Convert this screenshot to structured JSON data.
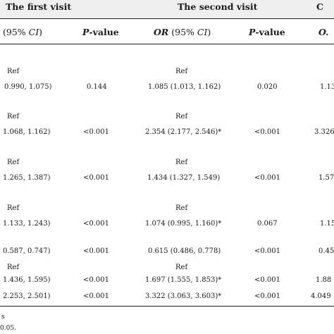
{
  "header": {
    "group1": "The first visit",
    "group2": "The second visit",
    "group3": "C"
  },
  "columns": {
    "c1": {
      "em": "(95% ",
      "ci": "CI",
      "close": ")"
    },
    "c2": {
      "p": "P",
      "rest": "-value"
    },
    "c3": {
      "or": "OR",
      "em": " (95% ",
      "ci": "CI",
      "close": ")"
    },
    "c4": {
      "p": "P",
      "rest": "-value"
    },
    "c5": {
      "or": "O."
    }
  },
  "rows": [
    {
      "c1": "Ref",
      "c2": "",
      "c3": "Ref",
      "c4": "",
      "c5": ""
    },
    {
      "c1": "0.990, 1.075)",
      "c2": "0.144",
      "c3": "1.085 (1.013, 1.162)",
      "c4": "0.020",
      "c5": "1.13"
    },
    {
      "c1": "Ref",
      "c2": "",
      "c3": "Ref",
      "c4": "",
      "c5": ""
    },
    {
      "c1": "1.068, 1.162)",
      "c2": "<0.001",
      "c3": "2.354 (2.177, 2.546)*",
      "c4": "<0.001",
      "c5": "3.326"
    },
    {
      "c1": "Ref",
      "c2": "",
      "c3": "Ref",
      "c4": "",
      "c5": ""
    },
    {
      "c1": "1.265, 1.387)",
      "c2": "<0.001",
      "c3": "1.434 (1.327, 1.549)",
      "c4": "<0.001",
      "c5": "1.57"
    },
    {
      "c1": "Ref",
      "c2": "",
      "c3": "Ref",
      "c4": "",
      "c5": ""
    },
    {
      "c1": "1.133, 1.243)",
      "c2": "<0.001",
      "c3": "1.074 (0.995, 1.160)*",
      "c4": "0.067",
      "c5": "1.15"
    },
    {
      "c1": "0.587, 0.747)",
      "c2": "<0.001",
      "c3": "0.615 (0.486, 0.778)",
      "c4": "<0.001",
      "c5": "0.45"
    },
    {
      "c1": "Ref",
      "c2": "",
      "c3": "Ref",
      "c4": "",
      "c5": ""
    },
    {
      "c1": "1.436, 1.595)",
      "c2": "<0.001",
      "c3": "1.697 (1.555, 1.853)*",
      "c4": "<0.001",
      "c5": "1.88"
    },
    {
      "c1": "2.253, 2.501)",
      "c2": "<0.001",
      "c3": "3.322 (3.063, 3.603)*",
      "c4": "<0.001",
      "c5": "4.049"
    }
  ],
  "footnotes": {
    "f1": "s",
    "f2": "0.05."
  }
}
